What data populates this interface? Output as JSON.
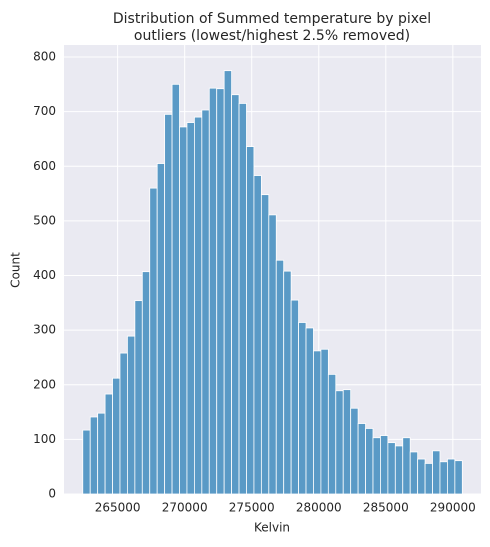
{
  "chart_data": {
    "type": "histogram",
    "title": [
      "Distribution of Summed temperature by pixel",
      "outliers (lowest/highest 2.5% removed)"
    ],
    "xlabel": "Kelvin",
    "ylabel": "Count",
    "bins": [
      262400,
      262955,
      263510,
      264065,
      264620,
      265175,
      265730,
      266285,
      266840,
      267395,
      267950,
      268505,
      269060,
      269615,
      270170,
      270725,
      271280,
      271835,
      272390,
      272945,
      273500,
      274055,
      274610,
      275165,
      275720,
      276275,
      276830,
      277385,
      277940,
      278495,
      279050,
      279605,
      280160,
      280715,
      281270,
      281825,
      282380,
      282935,
      283490,
      284045,
      284600,
      285155,
      285710,
      286265,
      286820,
      287375,
      287930,
      288485,
      289040,
      289595,
      290150,
      290705
    ],
    "counts": [
      117,
      141,
      148,
      183,
      212,
      258,
      289,
      354,
      407,
      560,
      605,
      695,
      750,
      672,
      680,
      690,
      703,
      743,
      742,
      775,
      731,
      715,
      636,
      583,
      548,
      511,
      428,
      408,
      355,
      314,
      304,
      262,
      265,
      219,
      189,
      191,
      157,
      129,
      120,
      103,
      107,
      94,
      88,
      103,
      77,
      64,
      56,
      79,
      59,
      64,
      61
    ],
    "color": "#5a9ac6",
    "xlim": [
      261000,
      292100
    ],
    "xticks": [
      265000,
      270000,
      275000,
      280000,
      285000,
      290000
    ],
    "ylim": [
      0,
      822
    ],
    "yticks": [
      0,
      100,
      200,
      300,
      400,
      500,
      600,
      700,
      800
    ],
    "grid": true
  }
}
